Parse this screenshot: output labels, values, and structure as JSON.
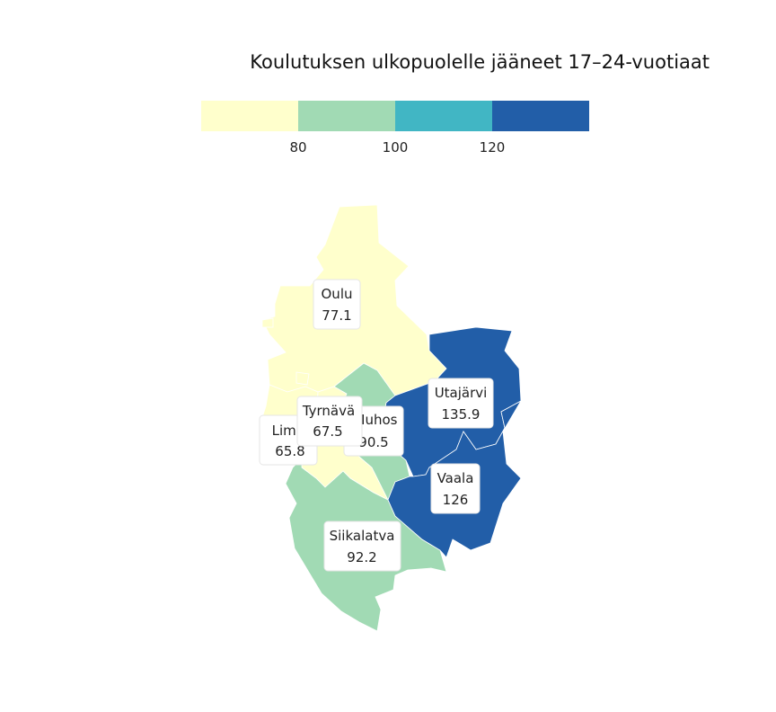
{
  "title": "Koulutuksen ulkopuolelle jääneet 17–24-vuotiaat",
  "legend": {
    "colors": [
      "#ffffcc",
      "#a1dab4",
      "#41b6c4",
      "#225ea8"
    ],
    "breaks": [
      "80",
      "100",
      "120"
    ]
  },
  "regions": [
    {
      "id": "oulu",
      "name": "Oulu",
      "value": "77.1",
      "color": "#ffffcc"
    },
    {
      "id": "liminka",
      "name": "Limin",
      "value": "65.8",
      "color": "#ffffcc"
    },
    {
      "id": "tyrnava",
      "name": "Tyrnävä",
      "value": "67.5",
      "color": "#ffffcc"
    },
    {
      "id": "muhos",
      "name": "Muhos",
      "value": "90.5",
      "color": "#a1dab4"
    },
    {
      "id": "siikalatva",
      "name": "Siikalatva",
      "value": "92.2",
      "color": "#a1dab4"
    },
    {
      "id": "utajarvi",
      "name": "Utajärvi",
      "value": "135.9",
      "color": "#225ea8"
    },
    {
      "id": "vaala",
      "name": "Vaala",
      "value": "126",
      "color": "#225ea8"
    }
  ]
}
